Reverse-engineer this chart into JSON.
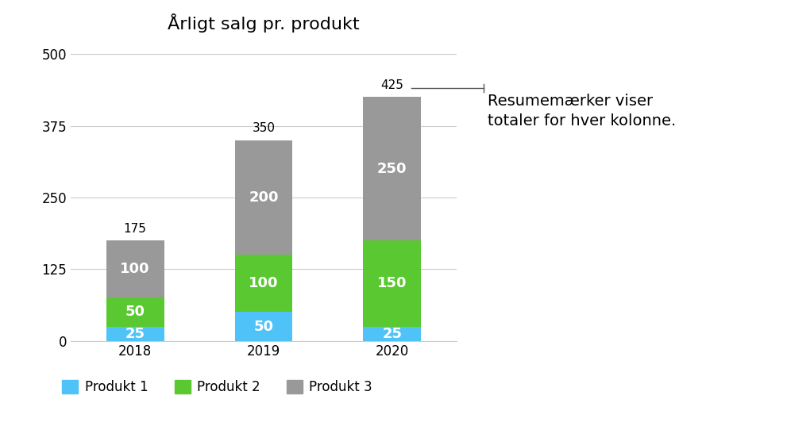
{
  "title": "Årligt salg pr. produkt",
  "categories": [
    "2018",
    "2019",
    "2020"
  ],
  "produkt1": [
    25,
    50,
    25
  ],
  "produkt2": [
    50,
    100,
    150
  ],
  "produkt3": [
    100,
    200,
    250
  ],
  "totals": [
    175,
    350,
    425
  ],
  "color_p1": "#4FC3F7",
  "color_p2": "#5AC830",
  "color_p3": "#999999",
  "legend_labels": [
    "Produkt 1",
    "Produkt 2",
    "Produkt 3"
  ],
  "ylabel_ticks": [
    0,
    125,
    250,
    375,
    500
  ],
  "ylim": [
    0,
    520
  ],
  "bar_width": 0.45,
  "annotation_text": "Resumemærker viser\ntotaler for hver kolonne.",
  "background_color": "#ffffff",
  "title_fontsize": 16,
  "tick_fontsize": 12,
  "label_fontsize": 14,
  "legend_fontsize": 12,
  "value_fontsize": 13,
  "total_fontsize": 11
}
